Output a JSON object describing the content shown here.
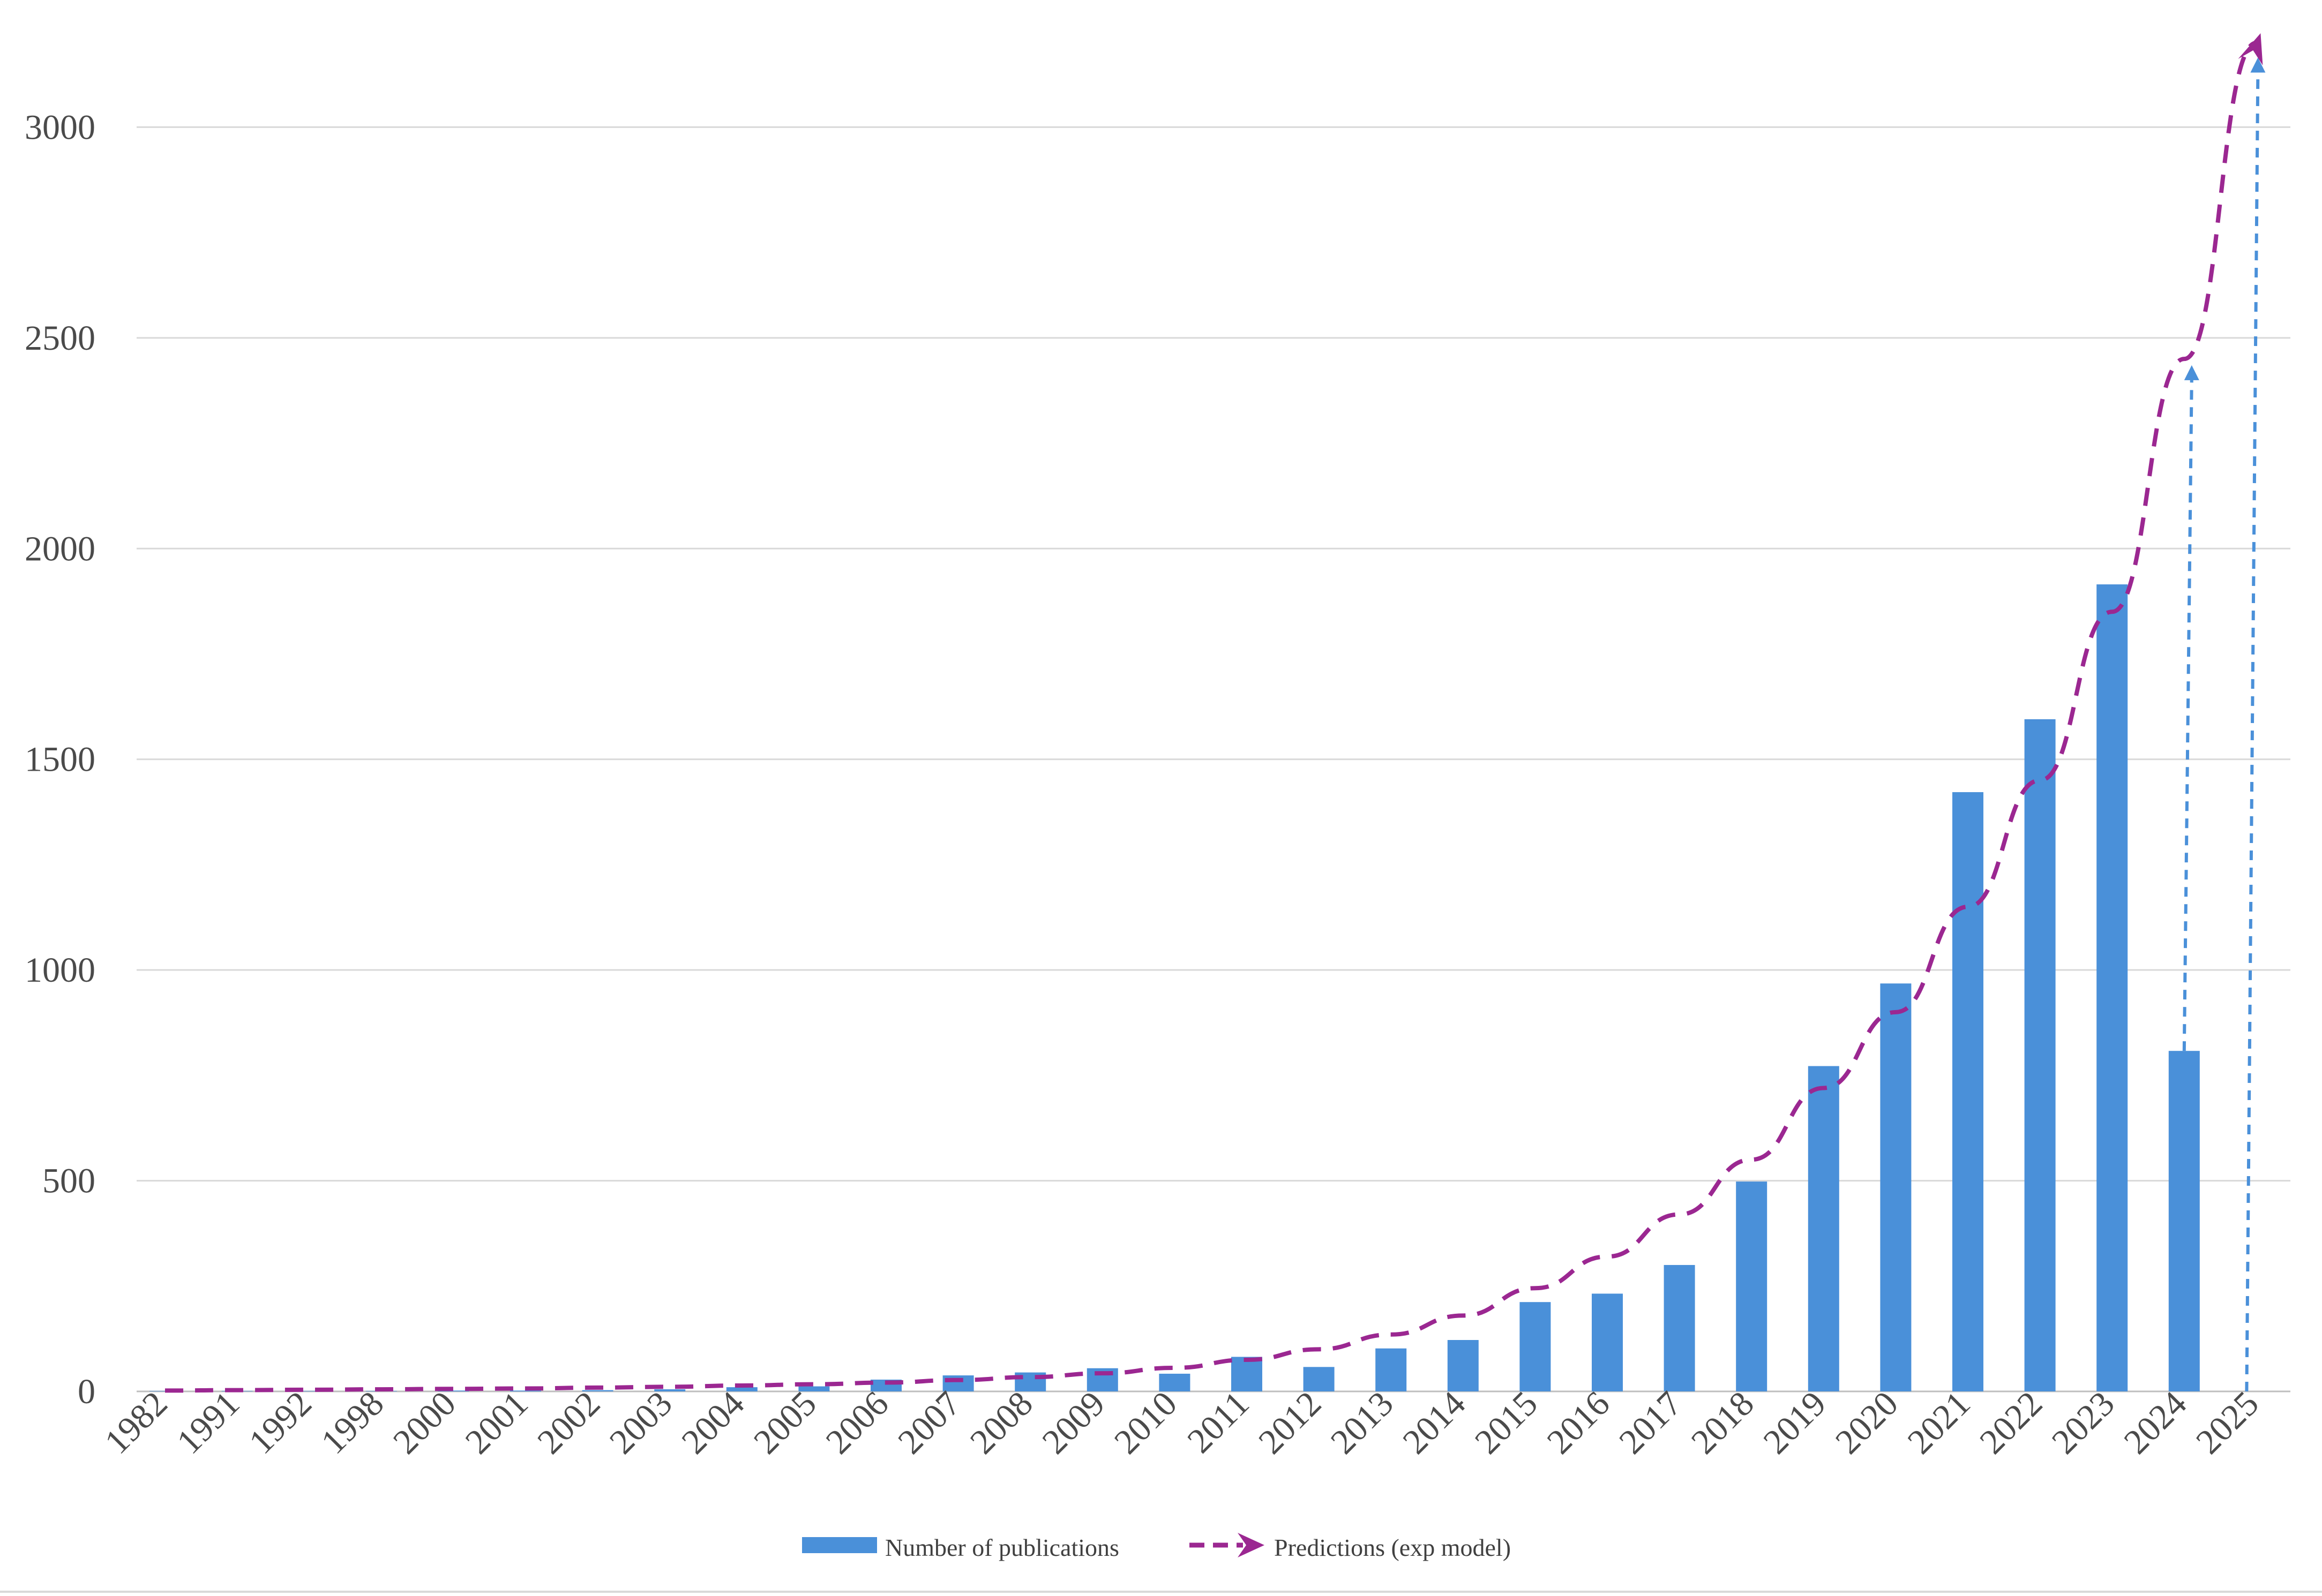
{
  "chart_data": {
    "type": "bar",
    "title": "",
    "xlabel": "",
    "ylabel": "",
    "categories": [
      "1982",
      "1991",
      "1992",
      "1998",
      "2000",
      "2001",
      "2002",
      "2003",
      "2004",
      "2005",
      "2006",
      "2007",
      "2008",
      "2009",
      "2010",
      "2011",
      "2012",
      "2013",
      "2014",
      "2015",
      "2016",
      "2017",
      "2018",
      "2019",
      "2020",
      "2021",
      "2022",
      "2023",
      "2024",
      "2025"
    ],
    "series": [
      {
        "name": "Number of publications",
        "type": "bar",
        "color": "#4a90d9",
        "values": [
          1,
          1,
          1,
          1,
          2,
          2,
          3,
          5,
          10,
          12,
          28,
          38,
          45,
          55,
          42,
          82,
          58,
          102,
          122,
          212,
          232,
          300,
          498,
          772,
          968,
          1422,
          1595,
          1915,
          808,
          null
        ]
      },
      {
        "name": "Predictions (exp model)",
        "type": "line",
        "style": "dashed",
        "color": "#9b2791",
        "values": [
          2,
          3,
          4,
          5,
          6,
          7,
          9,
          11,
          14,
          17,
          21,
          27,
          34,
          43,
          56,
          75,
          100,
          135,
          180,
          245,
          320,
          420,
          550,
          720,
          900,
          1150,
          1450,
          1850,
          2450,
          3200
        ]
      }
    ],
    "projections": [
      {
        "category": "2024",
        "from": 808,
        "to": 2430,
        "color": "#4a90d9",
        "style": "dotted-arrow"
      },
      {
        "category": "2025",
        "from": 0,
        "to": 3160,
        "color": "#4a90d9",
        "style": "dotted-arrow"
      }
    ],
    "ylim": [
      0,
      3200
    ],
    "yticks": [
      0,
      500,
      1000,
      1500,
      2000,
      2500,
      3000
    ],
    "grid": true,
    "legend": {
      "placement": "bottom-center",
      "entries": [
        "Number of publications",
        "Predictions (exp model)"
      ]
    }
  }
}
